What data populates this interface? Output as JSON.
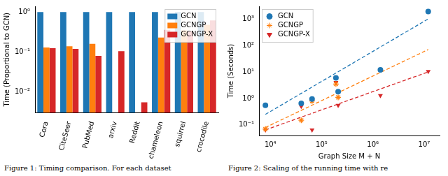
{
  "chart_data": [
    {
      "type": "bar",
      "caption": "Figure 1: Timing comparison. For each dataset",
      "y_label": "Time (Proportional to GCN)",
      "categories": [
        "Cora",
        "CiteSeer",
        "PubMed",
        "arxiv",
        "Reddit",
        "chameleon",
        "squirrel",
        "crocodile"
      ],
      "series": [
        {
          "name": "GCN",
          "color": "#1f77b4",
          "values": [
            1,
            1,
            1,
            1,
            1,
            1,
            1,
            1
          ]
        },
        {
          "name": "GCNGP",
          "color": "#ff7f0e",
          "values": [
            0.13,
            0.14,
            0.16,
            null,
            null,
            0.23,
            0.35,
            0.48
          ]
        },
        {
          "name": "GCNGP-X",
          "color": "#d62728",
          "values": [
            0.125,
            0.12,
            0.08,
            0.105,
            0.0055,
            0.36,
            0.33,
            0.62
          ]
        }
      ],
      "log": "y",
      "ylim": [
        0.003,
        1.4
      ],
      "yticks": [
        {
          "value": 0.01,
          "label": "10⁻²"
        },
        {
          "value": 0.1,
          "label": "10⁻¹"
        },
        {
          "value": 1,
          "label": "10⁰"
        }
      ],
      "grid": false,
      "legend": "upper right"
    },
    {
      "type": "scatter",
      "caption": "Figure 2: Scaling of the running time with re",
      "x_label": "Graph Size M + N",
      "y_label": "Time (Seconds)",
      "series": [
        {
          "name": "GCN",
          "color": "#1f77b4",
          "marker": "circle",
          "x": [
            8000,
            40000,
            65000,
            190000,
            210000,
            1400000,
            12000000
          ],
          "values": [
            0.55,
            0.65,
            0.95,
            6,
            1.8,
            12,
            1900
          ],
          "trend": {
            "x": [
              8000,
              12000000
            ],
            "y": [
              0.25,
              1000
            ],
            "line_style": "dashed"
          }
        },
        {
          "name": "GCNGP",
          "color": "#ff7f0e",
          "marker": "star",
          "x": [
            8000,
            40000,
            65000,
            190000,
            210000
          ],
          "values": [
            0.07,
            0.15,
            0.8,
            3.5,
            1.1
          ],
          "trend": {
            "x": [
              8000,
              12000000
            ],
            "y": [
              0.08,
              70
            ],
            "line_style": "dashed"
          }
        },
        {
          "name": "GCNGP-X",
          "color": "#d62728",
          "marker": "triangle_down",
          "x": [
            8000,
            40000,
            65000,
            190000,
            210000,
            1400000,
            12000000
          ],
          "values": [
            0.065,
            0.5,
            0.065,
            4,
            0.55,
            1.3,
            10.5
          ],
          "trend": {
            "x": [
              8000,
              12000000
            ],
            "y": [
              0.065,
              10
            ],
            "line_style": "dashed"
          }
        }
      ],
      "log": true,
      "xlim": [
        6000,
        20000000
      ],
      "ylim": [
        0.04,
        3000
      ],
      "xticks": [
        {
          "value": 10000,
          "label": "10⁴"
        },
        {
          "value": 100000,
          "label": "10⁵"
        },
        {
          "value": 1000000,
          "label": "10⁶"
        },
        {
          "value": 10000000,
          "label": "10⁷"
        }
      ],
      "yticks": [
        {
          "value": 0.1,
          "label": "10⁻¹"
        },
        {
          "value": 1,
          "label": "10⁰"
        },
        {
          "value": 10,
          "label": "10¹"
        },
        {
          "value": 100,
          "label": "10²"
        },
        {
          "value": 1000,
          "label": "10³"
        }
      ],
      "grid": false,
      "legend": "upper left"
    }
  ]
}
